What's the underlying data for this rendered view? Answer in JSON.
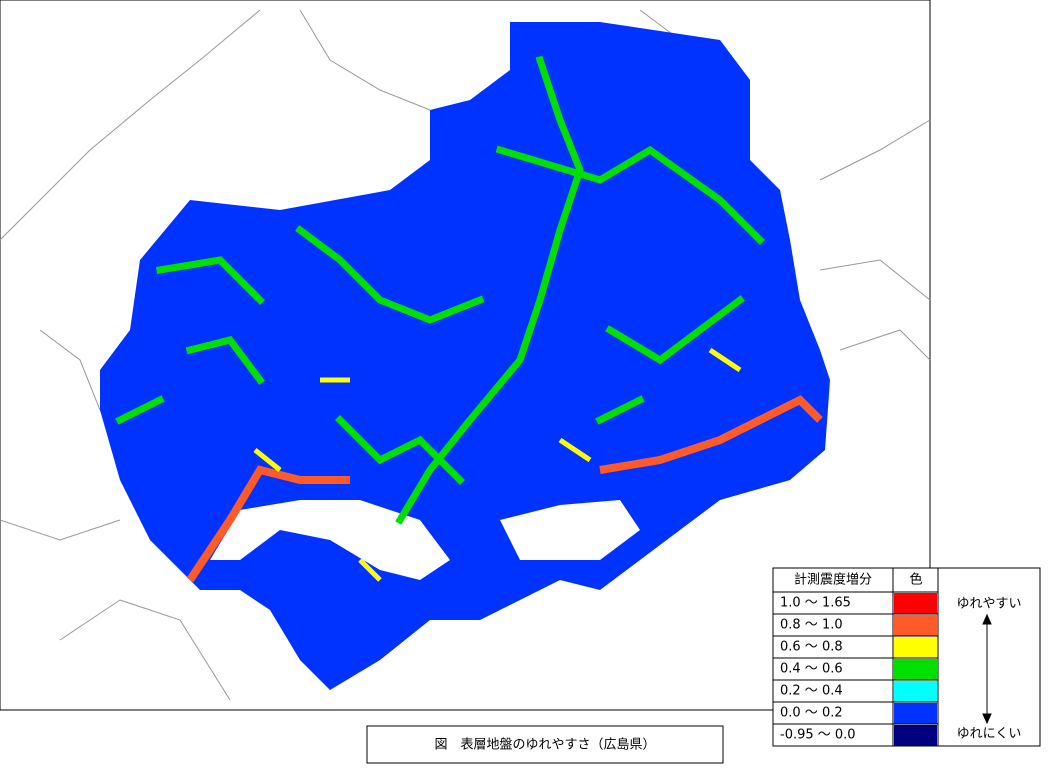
{
  "map": {
    "legend": {
      "header": [
        "計測震度増分",
        "色"
      ],
      "rows": [
        {
          "range": "1.0 ～ 1.65",
          "color": "#ff0000"
        },
        {
          "range": "0.8 ～ 1.0",
          "color": "#ff5a28"
        },
        {
          "range": "0.6 ～ 0.8",
          "color": "#ffff00"
        },
        {
          "range": "0.4 ～ 0.6",
          "color": "#00e000"
        },
        {
          "range": "0.2 ～ 0.4",
          "color": "#00ffff"
        },
        {
          "range": "0.0 ～ 0.2",
          "color": "#0033ff"
        },
        {
          "range": "-0.95 ～ 0.0",
          "color": "#000080"
        }
      ],
      "high_label": "ゆれやすい",
      "low_label": "ゆれにくい"
    },
    "caption": "図　表層地盤のゆれやすさ（広島県）"
  }
}
